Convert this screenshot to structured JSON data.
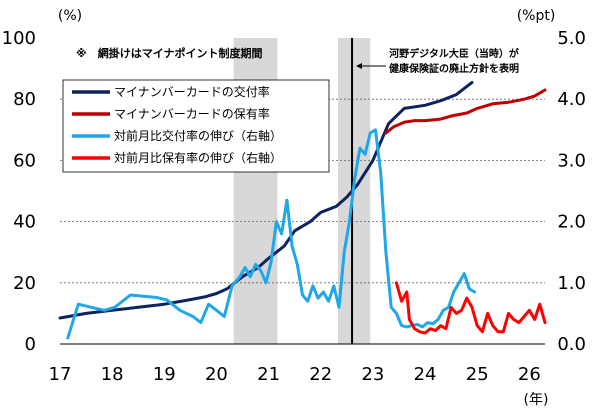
{
  "chart_data": {
    "type": "line",
    "note": "※　網掛けはマイナポイント制度期間",
    "annotation_lines": [
      "河野デジタル大臣（当時）が",
      "健康保険証の廃止方針を表明"
    ],
    "annotation_x": 22.6,
    "left_unit": "(%)",
    "right_unit": "(%pt)",
    "x_unit": "(年)",
    "xlim": [
      17,
      26.3
    ],
    "x_ticks": [
      17,
      18,
      19,
      20,
      21,
      22,
      23,
      24,
      25,
      26
    ],
    "x_tick_labels": [
      "17",
      "18",
      "19",
      "20",
      "21",
      "22",
      "23",
      "24",
      "25",
      "26"
    ],
    "ylim_left": [
      0,
      100
    ],
    "y_ticks_left": [
      0,
      20,
      40,
      60,
      80,
      100
    ],
    "y_tick_labels_left": [
      "0",
      "20",
      "40",
      "60",
      "80",
      "100"
    ],
    "ylim_right": [
      0,
      5
    ],
    "y_ticks_right": [
      0,
      1,
      2,
      3,
      4,
      5
    ],
    "y_tick_labels_right": [
      "0.0",
      "1.0",
      "2.0",
      "3.0",
      "4.0",
      "5.0"
    ],
    "gridlines": [
      20,
      40,
      60,
      80
    ],
    "shaded_periods": [
      [
        20.33,
        21.17
      ],
      [
        22.33,
        22.95
      ]
    ],
    "legend": {
      "position": "top-left"
    },
    "colors": {
      "navy": "#0d2360",
      "red": "#c00000",
      "lightblue": "#1fa7e8",
      "brightred": "#ff0000",
      "shade": "#d8d8d8"
    },
    "series": [
      {
        "name": "マイナンバーカードの交付率",
        "axis": "left",
        "color": "#0d2360",
        "x": [
          17.0,
          17.5,
          18.0,
          18.5,
          19.0,
          19.5,
          19.8,
          20.0,
          20.2,
          20.5,
          20.8,
          21.0,
          21.3,
          21.5,
          21.8,
          22.0,
          22.3,
          22.5,
          22.7,
          23.0,
          23.3,
          23.6,
          24.0,
          24.3,
          24.6,
          24.9
        ],
        "y": [
          8.5,
          10,
          11,
          12,
          13,
          14.5,
          15.5,
          16.5,
          18,
          22,
          25,
          28,
          32,
          37,
          40,
          43,
          45,
          48,
          52,
          60,
          72,
          77,
          78,
          79.5,
          81.5,
          85.5
        ]
      },
      {
        "name": "マイナンバーカードの保有率",
        "axis": "left",
        "color": "#c00000",
        "x": [
          23.25,
          23.4,
          23.6,
          23.8,
          24.0,
          24.3,
          24.5,
          24.8,
          25.0,
          25.3,
          25.6,
          25.9,
          26.1,
          26.3
        ],
        "y": [
          69,
          71,
          72.5,
          73,
          73,
          73.5,
          74.5,
          75.5,
          77,
          78.5,
          79,
          80,
          81,
          83
        ]
      },
      {
        "name": "対前月比交付率の伸び（右軸）",
        "axis": "right",
        "color": "#1fa7e8",
        "x": [
          17.15,
          17.35,
          17.6,
          17.85,
          18.05,
          18.35,
          18.6,
          18.85,
          19.05,
          19.3,
          19.55,
          19.7,
          19.85,
          20.0,
          20.15,
          20.3,
          20.45,
          20.55,
          20.65,
          20.75,
          20.85,
          20.95,
          21.05,
          21.15,
          21.25,
          21.35,
          21.45,
          21.55,
          21.65,
          21.75,
          21.85,
          21.95,
          22.05,
          22.15,
          22.25,
          22.35,
          22.45,
          22.55,
          22.65,
          22.75,
          22.85,
          22.95,
          23.05,
          23.15,
          23.25,
          23.35,
          23.45,
          23.55,
          23.65,
          23.75,
          23.85,
          23.95,
          24.05,
          24.15,
          24.25,
          24.35,
          24.45,
          24.55,
          24.65,
          24.75,
          24.85,
          24.95
        ],
        "y": [
          0.1,
          0.65,
          0.6,
          0.55,
          0.6,
          0.8,
          0.78,
          0.76,
          0.72,
          0.55,
          0.45,
          0.35,
          0.65,
          0.55,
          0.45,
          0.95,
          1.1,
          1.25,
          1.1,
          1.3,
          1.2,
          1.0,
          1.35,
          2.0,
          1.8,
          2.35,
          1.6,
          1.3,
          0.8,
          0.7,
          0.95,
          0.75,
          0.85,
          0.7,
          0.95,
          0.6,
          1.5,
          2.0,
          2.7,
          3.2,
          3.1,
          3.45,
          3.5,
          2.8,
          1.5,
          0.6,
          0.5,
          0.3,
          0.28,
          0.3,
          0.32,
          0.28,
          0.35,
          0.33,
          0.4,
          0.55,
          0.6,
          0.85,
          1.0,
          1.15,
          0.9,
          0.85
        ]
      },
      {
        "name": "対前月比保有率の伸び（右軸）",
        "axis": "right",
        "color": "#ff0000",
        "x": [
          23.45,
          23.55,
          23.65,
          23.7,
          23.8,
          23.9,
          24.0,
          24.1,
          24.2,
          24.3,
          24.4,
          24.5,
          24.6,
          24.7,
          24.8,
          24.9,
          25.0,
          25.1,
          25.2,
          25.3,
          25.4,
          25.5,
          25.6,
          25.7,
          25.8,
          25.9,
          26.0,
          26.1,
          26.2,
          26.3
        ],
        "y": [
          1.0,
          0.7,
          0.85,
          0.4,
          0.25,
          0.2,
          0.18,
          0.25,
          0.22,
          0.3,
          0.25,
          0.6,
          0.5,
          0.55,
          0.75,
          0.6,
          0.3,
          0.2,
          0.5,
          0.3,
          0.2,
          0.2,
          0.5,
          0.4,
          0.35,
          0.45,
          0.55,
          0.4,
          0.65,
          0.35
        ]
      }
    ]
  }
}
